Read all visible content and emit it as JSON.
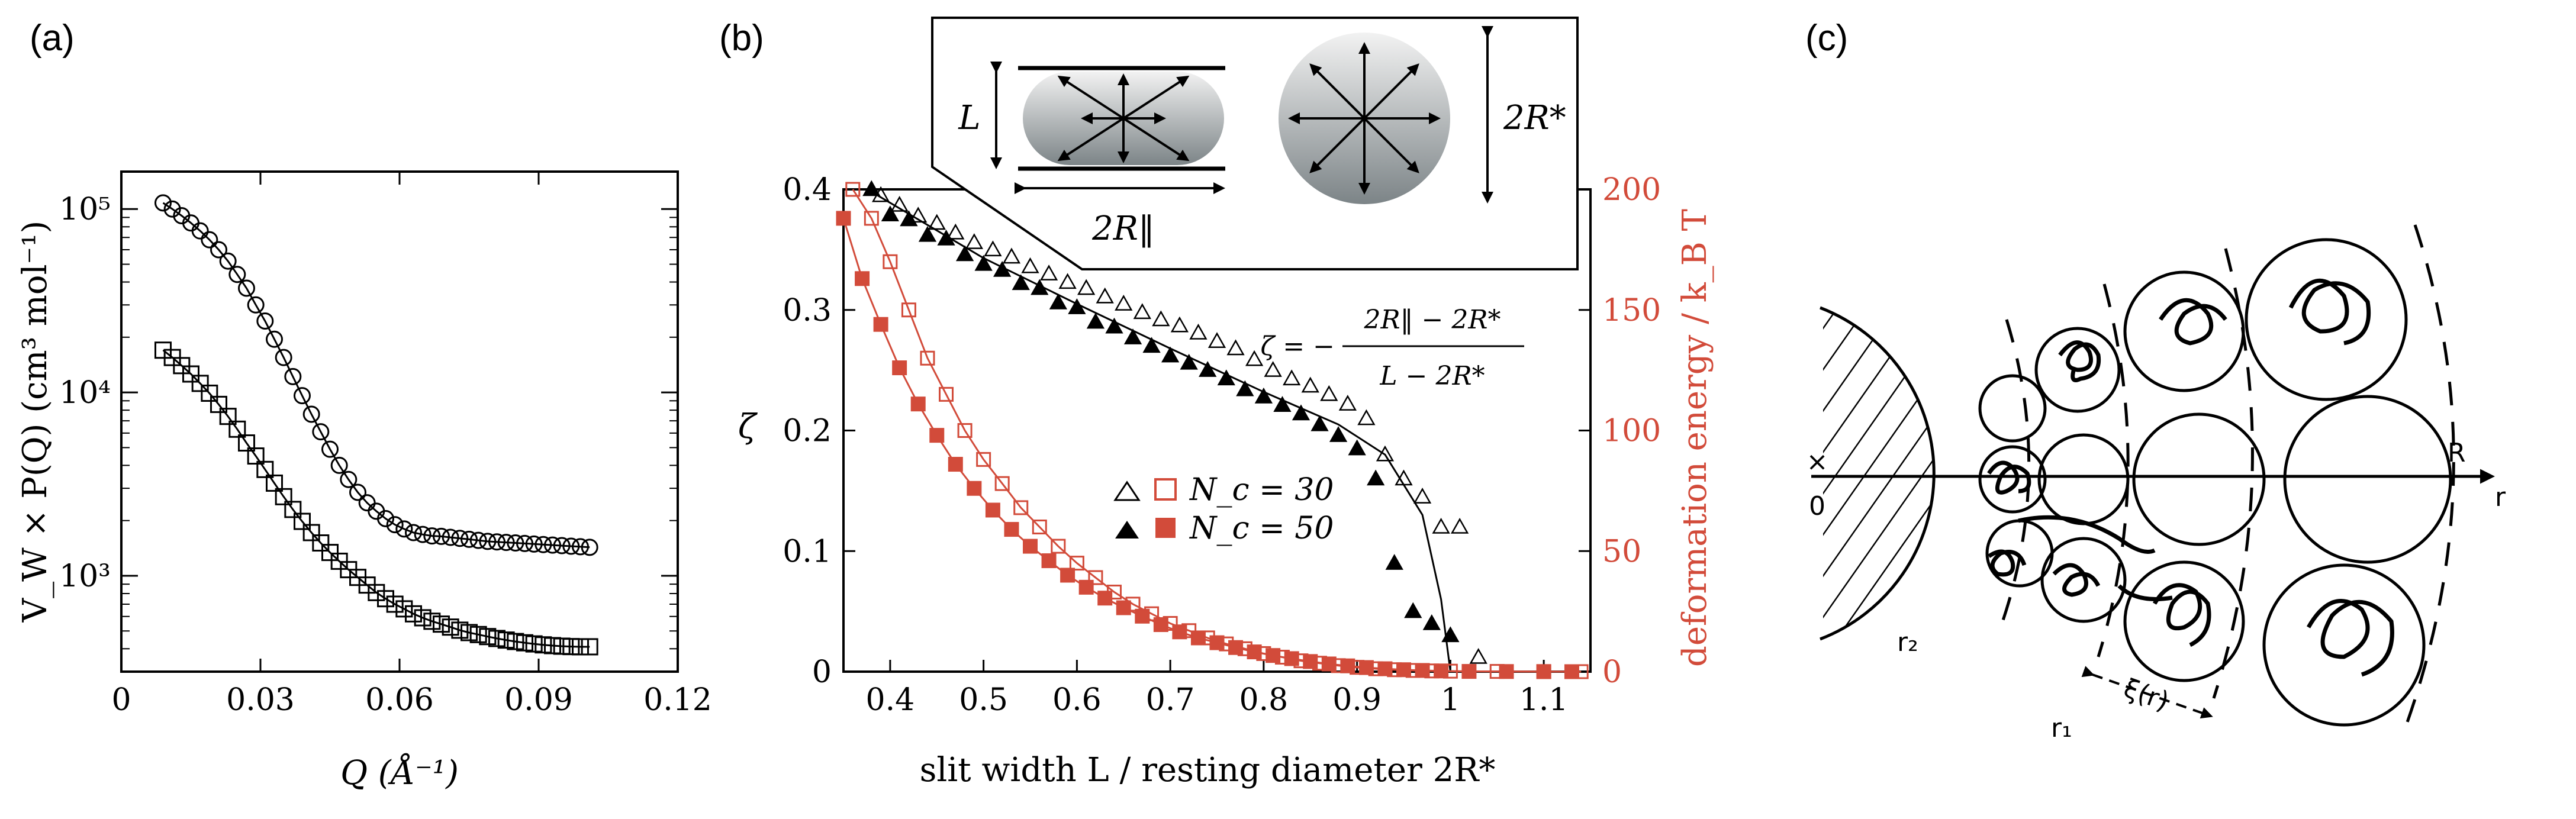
{
  "panels": {
    "a": "(a)",
    "b": "(b)",
    "c": "(c)"
  },
  "chart_data": [
    {
      "id": "a",
      "type": "scatter",
      "title": "",
      "xlabel": "Q (Å⁻¹)",
      "ylabel": "V_W × P(Q) (cm³ mol⁻¹)",
      "xscale": "linear",
      "yscale": "log",
      "xlim": [
        0,
        0.12
      ],
      "ylim": [
        300,
        160000
      ],
      "xticks": [
        "0",
        "0.03",
        "0.06",
        "0.09",
        "0.12"
      ],
      "yticks": [
        "10⁵",
        "10⁴",
        "10³"
      ],
      "series": [
        {
          "name": "upper (circles)",
          "marker": "open-circle",
          "x": [
            0.009,
            0.011,
            0.013,
            0.015,
            0.017,
            0.019,
            0.021,
            0.023,
            0.025,
            0.027,
            0.029,
            0.031,
            0.033,
            0.035,
            0.037,
            0.039,
            0.041,
            0.043,
            0.045,
            0.047,
            0.049,
            0.051,
            0.053,
            0.055,
            0.057,
            0.059,
            0.061,
            0.063,
            0.065,
            0.067,
            0.069,
            0.071,
            0.073,
            0.075,
            0.077,
            0.079,
            0.081,
            0.083,
            0.085,
            0.087,
            0.089,
            0.091,
            0.093,
            0.095,
            0.097,
            0.099,
            0.101
          ],
          "y": [
            108000,
            100000,
            92000,
            84000,
            76000,
            68000,
            60000,
            52000,
            44000,
            37000,
            30000,
            24500,
            19500,
            15500,
            12200,
            9600,
            7600,
            6100,
            4900,
            4000,
            3350,
            2850,
            2500,
            2250,
            2050,
            1900,
            1800,
            1720,
            1680,
            1650,
            1640,
            1620,
            1600,
            1580,
            1560,
            1540,
            1530,
            1520,
            1510,
            1500,
            1490,
            1480,
            1470,
            1460,
            1450,
            1440,
            1430
          ]
        },
        {
          "name": "lower (squares)",
          "marker": "open-square",
          "x": [
            0.009,
            0.011,
            0.013,
            0.015,
            0.017,
            0.019,
            0.021,
            0.023,
            0.025,
            0.027,
            0.029,
            0.031,
            0.033,
            0.035,
            0.037,
            0.039,
            0.041,
            0.043,
            0.045,
            0.047,
            0.049,
            0.051,
            0.053,
            0.055,
            0.057,
            0.059,
            0.061,
            0.063,
            0.065,
            0.067,
            0.069,
            0.071,
            0.073,
            0.075,
            0.077,
            0.079,
            0.081,
            0.083,
            0.085,
            0.087,
            0.089,
            0.091,
            0.093,
            0.095,
            0.097,
            0.099,
            0.101
          ],
          "y": [
            17000,
            15500,
            14000,
            12600,
            11200,
            9900,
            8600,
            7400,
            6300,
            5300,
            4500,
            3800,
            3200,
            2700,
            2300,
            1980,
            1720,
            1510,
            1340,
            1200,
            1080,
            980,
            890,
            810,
            750,
            700,
            660,
            620,
            590,
            565,
            545,
            525,
            505,
            490,
            478,
            466,
            455,
            446,
            438,
            431,
            425,
            420,
            416,
            413,
            411,
            410,
            410
          ]
        }
      ]
    },
    {
      "id": "b",
      "type": "scatter",
      "xlabel": "slit width L / resting diameter 2R*",
      "ylabel": "ζ",
      "ylabel_right": "deformation energy / k_B T",
      "xlim": [
        0.35,
        1.15
      ],
      "ylim": [
        0,
        0.4
      ],
      "ylim_right": [
        0,
        200
      ],
      "xticks": [
        "0.4",
        "0.5",
        "0.6",
        "0.7",
        "0.8",
        "0.9",
        "1",
        "1.1"
      ],
      "yticks": [
        "0",
        "0.1",
        "0.2",
        "0.3",
        "0.4"
      ],
      "yticks_right": [
        "0",
        "50",
        "100",
        "150",
        "200"
      ],
      "legend": {
        "position": "center",
        "entries": [
          {
            "label": "N_c = 30",
            "marker": "open"
          },
          {
            "label": "N_c = 50",
            "marker": "filled"
          }
        ]
      },
      "formula_text": {
        "lhs": "ζ = −",
        "numerator": "2R‖ − 2R*",
        "denominator": "L − 2R*"
      },
      "inset_text": {
        "slit_width": "L",
        "parallel_diameter": "2R‖",
        "resting_diameter": "2R*"
      },
      "series": [
        {
          "name": "ζ, N_c = 30",
          "marker": "open-triangle",
          "color": "#000000",
          "axis": "left",
          "x": [
            0.39,
            0.41,
            0.43,
            0.45,
            0.47,
            0.49,
            0.51,
            0.53,
            0.55,
            0.57,
            0.59,
            0.61,
            0.63,
            0.65,
            0.67,
            0.69,
            0.71,
            0.73,
            0.75,
            0.77,
            0.79,
            0.81,
            0.83,
            0.85,
            0.87,
            0.89,
            0.91,
            0.93,
            0.95,
            0.97,
            0.99,
            1.01,
            1.03
          ],
          "y": [
            0.395,
            0.387,
            0.378,
            0.372,
            0.364,
            0.356,
            0.35,
            0.344,
            0.336,
            0.33,
            0.323,
            0.318,
            0.311,
            0.305,
            0.298,
            0.292,
            0.287,
            0.281,
            0.274,
            0.268,
            0.259,
            0.25,
            0.243,
            0.237,
            0.23,
            0.222,
            0.21,
            0.18,
            0.16,
            0.145,
            0.12,
            0.12,
            0.012
          ]
        },
        {
          "name": "ζ, N_c = 50",
          "marker": "filled-triangle",
          "color": "#000000",
          "axis": "left",
          "x": [
            0.38,
            0.4,
            0.42,
            0.44,
            0.46,
            0.48,
            0.5,
            0.52,
            0.54,
            0.56,
            0.58,
            0.6,
            0.62,
            0.64,
            0.66,
            0.68,
            0.7,
            0.72,
            0.74,
            0.76,
            0.78,
            0.8,
            0.82,
            0.84,
            0.86,
            0.88,
            0.9,
            0.92,
            0.94,
            0.96,
            0.98,
            1.0
          ],
          "y": [
            0.4,
            0.379,
            0.375,
            0.362,
            0.359,
            0.346,
            0.338,
            0.333,
            0.322,
            0.318,
            0.306,
            0.302,
            0.29,
            0.286,
            0.277,
            0.27,
            0.262,
            0.256,
            0.25,
            0.243,
            0.234,
            0.228,
            0.221,
            0.214,
            0.205,
            0.196,
            0.185,
            0.16,
            0.09,
            0.05,
            0.04,
            0.03
          ]
        },
        {
          "name": "energy, N_c = 30",
          "marker": "open-square",
          "color": "#d24b3a",
          "axis": "right",
          "x": [
            0.36,
            0.38,
            0.4,
            0.42,
            0.44,
            0.46,
            0.48,
            0.5,
            0.52,
            0.54,
            0.56,
            0.58,
            0.6,
            0.62,
            0.64,
            0.66,
            0.68,
            0.7,
            0.72,
            0.74,
            0.76,
            0.78,
            0.8,
            0.82,
            0.84,
            0.86,
            0.88,
            0.9,
            0.92,
            0.94,
            0.96,
            0.98,
            1.0,
            1.05,
            1.1,
            1.14
          ],
          "y": [
            200,
            188,
            170,
            150,
            130,
            115,
            100,
            88,
            78,
            68,
            60,
            52,
            45,
            39,
            33,
            28,
            24,
            20,
            17,
            14,
            11.5,
            9.5,
            7.5,
            6,
            4.5,
            3.5,
            2.5,
            1.8,
            1.2,
            0.8,
            0.5,
            0.3,
            0.2,
            0.1,
            0.05,
            0
          ]
        },
        {
          "name": "energy, N_c = 50",
          "marker": "filled-square",
          "color": "#d24b3a",
          "axis": "right",
          "x": [
            0.35,
            0.37,
            0.39,
            0.41,
            0.43,
            0.45,
            0.47,
            0.49,
            0.51,
            0.53,
            0.55,
            0.57,
            0.59,
            0.61,
            0.63,
            0.65,
            0.67,
            0.69,
            0.71,
            0.73,
            0.75,
            0.77,
            0.79,
            0.81,
            0.83,
            0.85,
            0.87,
            0.89,
            0.91,
            0.93,
            0.95,
            0.97,
            0.99,
            1.02,
            1.06,
            1.1,
            1.13
          ],
          "y": [
            188,
            163,
            144,
            126,
            111,
            98,
            86,
            76,
            67,
            59,
            52,
            46,
            40,
            35,
            30.5,
            26.5,
            23,
            19.5,
            16.5,
            14,
            12,
            10,
            8.2,
            6.7,
            5.4,
            4.2,
            3.2,
            2.4,
            1.7,
            1.2,
            0.8,
            0.5,
            0.3,
            0.1,
            0.05,
            0,
            0
          ]
        }
      ]
    }
  ],
  "diagram_c": {
    "labels": {
      "origin": "0",
      "radius": "R",
      "axis": "r",
      "r_inner": "r₂",
      "r_outer": "r₁",
      "blob_size": "ξ(r)"
    }
  }
}
